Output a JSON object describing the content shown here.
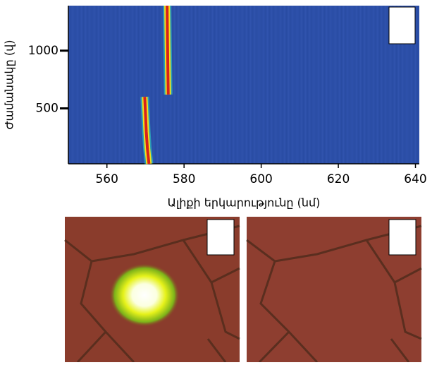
{
  "chart_data": {
    "type": "line",
    "xlabel": "Ալիքի երկարությունը (նմ)",
    "ylabel": "Ժամանակը (վ)",
    "xlim": [
      550,
      641
    ],
    "ylim": [
      20,
      1390
    ],
    "xticks": [
      560,
      580,
      600,
      620,
      640
    ],
    "yticks": [
      500,
      1000
    ],
    "background": "#2c4fa8",
    "series": [
      {
        "color": "#d8201c",
        "x": [
          570.9,
          570.5,
          570.2,
          570.0,
          569.8,
          null,
          575.9,
          575.8,
          575.7,
          575.6
        ],
        "values": [
          20,
          150,
          300,
          450,
          600,
          null,
          620,
          850,
          1100,
          1390
        ]
      }
    ]
  }
}
